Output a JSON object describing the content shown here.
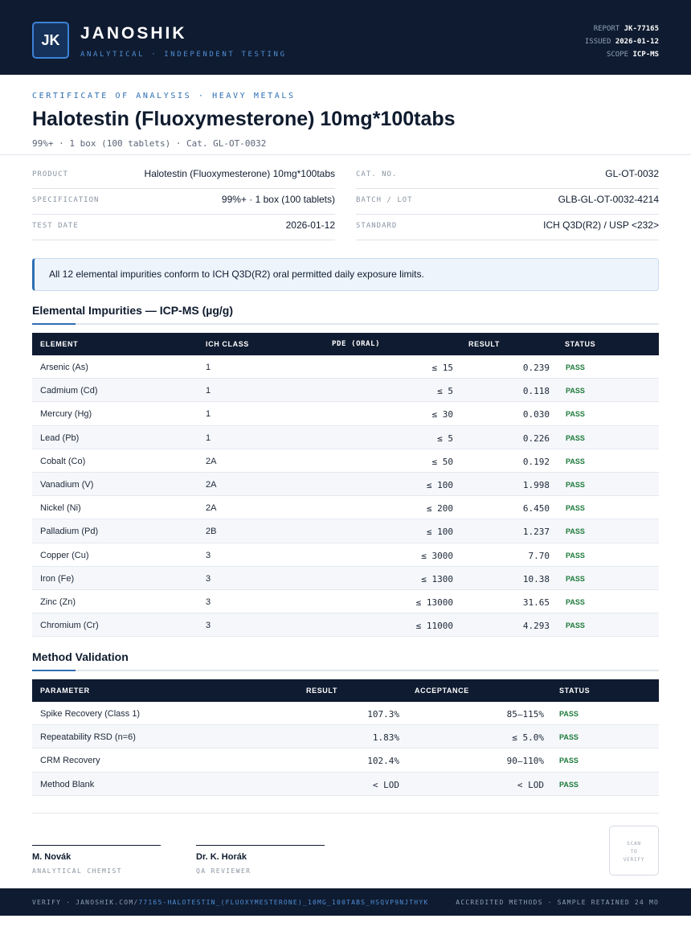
{
  "header": {
    "logo_text": "JK",
    "brand": "JANOSHIK",
    "tagline": "ANALYTICAL · INDEPENDENT TESTING",
    "report_label": "REPORT",
    "report_value": "JK-77165",
    "issued_label": "ISSUED",
    "issued_value": "2026-01-12",
    "scope_label": "SCOPE",
    "scope_value": "ICP-MS"
  },
  "doc": {
    "eyebrow": "CERTIFICATE OF ANALYSIS · HEAVY METALS",
    "title": "Halotestin (Fluoxymesterone) 10mg*100tabs",
    "subtitle": "99%+ · 1 box (100 tablets)  ·  Cat. GL-OT-0032"
  },
  "details": {
    "product_label": "PRODUCT",
    "product_value": "Halotestin (Fluoxymesterone) 10mg*100tabs",
    "spec_label": "SPECIFICATION",
    "spec_value": "99%+ · 1 box (100 tablets)",
    "date_label": "TEST DATE",
    "date_value": "2026-01-12",
    "cat_label": "CAT. NO.",
    "cat_value": "GL-OT-0032",
    "batch_label": "BATCH / LOT",
    "batch_value": "GLB-GL-OT-0032-4214",
    "standard_label": "STANDARD",
    "standard_value": "ICH Q3D(R2) / USP <232>"
  },
  "notice": "All 12 elemental impurities conform to ICH Q3D(R2) oral permitted daily exposure limits.",
  "impurities": {
    "title": "Elemental Impurities — ICP-MS (µg/g)",
    "headers": [
      "ELEMENT",
      "ICH CLASS",
      "PDE (ORAL)",
      "RESULT",
      "STATUS"
    ],
    "rows": [
      [
        "Arsenic (As)",
        "1",
        "≤ 15",
        "0.239",
        "PASS"
      ],
      [
        "Cadmium (Cd)",
        "1",
        "≤ 5",
        "0.118",
        "PASS"
      ],
      [
        "Mercury (Hg)",
        "1",
        "≤ 30",
        "0.030",
        "PASS"
      ],
      [
        "Lead (Pb)",
        "1",
        "≤ 5",
        "0.226",
        "PASS"
      ],
      [
        "Cobalt (Co)",
        "2A",
        "≤ 50",
        "0.192",
        "PASS"
      ],
      [
        "Vanadium (V)",
        "2A",
        "≤ 100",
        "1.998",
        "PASS"
      ],
      [
        "Nickel (Ni)",
        "2A",
        "≤ 200",
        "6.450",
        "PASS"
      ],
      [
        "Palladium (Pd)",
        "2B",
        "≤ 100",
        "1.237",
        "PASS"
      ],
      [
        "Copper (Cu)",
        "3",
        "≤ 3000",
        "7.70",
        "PASS"
      ],
      [
        "Iron (Fe)",
        "3",
        "≤ 1300",
        "10.38",
        "PASS"
      ],
      [
        "Zinc (Zn)",
        "3",
        "≤ 13000",
        "31.65",
        "PASS"
      ],
      [
        "Chromium (Cr)",
        "3",
        "≤ 11000",
        "4.293",
        "PASS"
      ]
    ]
  },
  "validation": {
    "title": "Method Validation",
    "headers": [
      "PARAMETER",
      "RESULT",
      "ACCEPTANCE",
      "STATUS"
    ],
    "rows": [
      [
        "Spike Recovery (Class 1)",
        "107.3%",
        "85–115%",
        "PASS"
      ],
      [
        "Repeatability RSD (n=6)",
        "1.83%",
        "≤ 5.0%",
        "PASS"
      ],
      [
        "CRM Recovery",
        "102.4%",
        "90–110%",
        "PASS"
      ],
      [
        "Method Blank",
        "< LOD",
        "< LOD",
        "PASS"
      ]
    ]
  },
  "signatures": {
    "chemist_name": "M. Novák",
    "chemist_role": "ANALYTICAL CHEMIST",
    "reviewer_name": "Dr. K. Horák",
    "reviewer_role": "QA REVIEWER",
    "qr_line1": "SCAN",
    "qr_line2": "TO",
    "qr_line3": "VERIFY"
  },
  "footer": {
    "verify_prefix": "VERIFY · JANOSHIK.COM/",
    "verify_path": "77165-HALOTESTIN_(FLUOXYMESTERONE)_10MG_100TABS_HSQVP9NJTHYK",
    "right": "ACCREDITED METHODS · SAMPLE RETAINED 24 MO"
  },
  "colors": {
    "navy": "#0f1b30",
    "accent": "#2f6fb3",
    "pass": "#1d7a3a"
  }
}
